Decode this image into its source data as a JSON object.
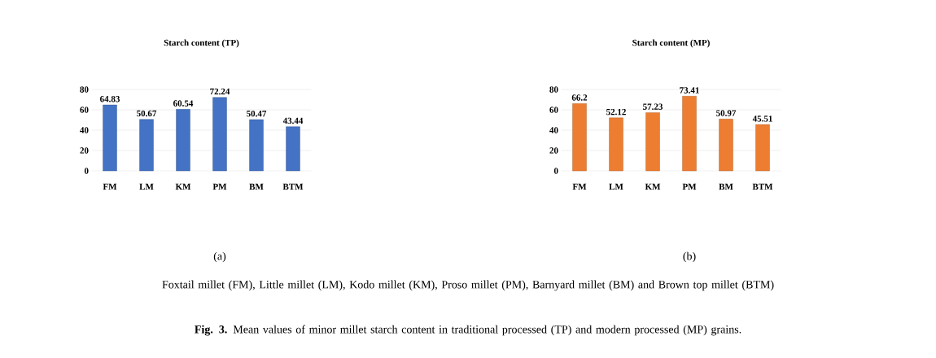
{
  "chart_data": [
    {
      "type": "bar",
      "title": "Starch content (TP)",
      "categories": [
        "FM",
        "LM",
        "KM",
        "PM",
        "BM",
        "BTM"
      ],
      "values": [
        64.83,
        50.67,
        60.54,
        72.24,
        50.47,
        43.44
      ],
      "color": "#4472c4",
      "ylim": [
        0,
        80
      ],
      "yticks": [
        0,
        20,
        40,
        60,
        80
      ],
      "grid": "y",
      "data_labels": true,
      "annotations": [
        "(a)"
      ]
    },
    {
      "type": "bar",
      "title": "Starch content (MP)",
      "categories": [
        "FM",
        "LM",
        "KM",
        "PM",
        "BM",
        "BTM"
      ],
      "values": [
        66.2,
        52.12,
        57.23,
        73.41,
        50.97,
        45.51
      ],
      "color": "#ed7d31",
      "ylim": [
        0,
        80
      ],
      "yticks": [
        0,
        20,
        40,
        60,
        80
      ],
      "grid": "y",
      "data_labels": true,
      "annotations": [
        "(b)",
        "Foxtail millet (FM), Little millet (LM), Kodo millet (KM), Proso millet (PM), Barnyard millet (BM) and Brown top millet (BTM)",
        "**Fig. 3.** Mean values of minor millet starch content in traditional processed (TP) and modern processed (MP) grains."
      ]
    }
  ]
}
